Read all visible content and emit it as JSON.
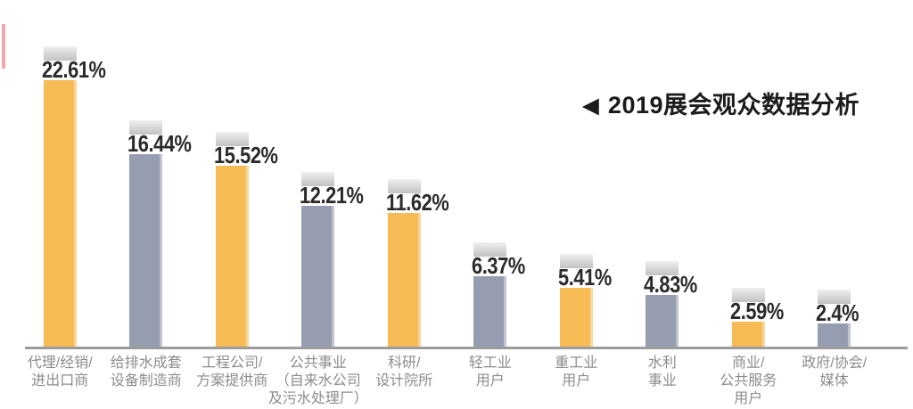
{
  "chart_data": {
    "type": "bar",
    "title": "2019展会观众数据分析",
    "title_marker": "◀",
    "unit": "%",
    "legend": "none",
    "grid": false,
    "ylim": [
      0,
      25
    ],
    "categories": [
      "代理/经销/进出口商",
      "给排水成套设备制造商",
      "工程公司/方案提供商",
      "公共事业（自来水公司及污水处理厂）",
      "科研/设计院所",
      "轻工业用户",
      "重工业用户",
      "水利事业",
      "商业/公共服务用户",
      "政府/协会/媒体"
    ],
    "category_lines": [
      [
        "代理/经销/",
        "进出口商"
      ],
      [
        "给排水成套",
        "设备制造商"
      ],
      [
        "工程公司/",
        "方案提供商"
      ],
      [
        "公共事业",
        "（自来水公司",
        "及污水处理厂）"
      ],
      [
        "科研/",
        "设计院所"
      ],
      [
        "轻工业",
        "用户"
      ],
      [
        "重工业",
        "用户"
      ],
      [
        "水利",
        "事业"
      ],
      [
        "商业/",
        "公共服务",
        "用户"
      ],
      [
        "政府/协会/",
        "媒体"
      ]
    ],
    "values": [
      22.61,
      16.44,
      15.52,
      12.21,
      11.62,
      6.37,
      5.41,
      4.83,
      2.59,
      2.4
    ],
    "value_labels": [
      "22.61%",
      "16.44%",
      "15.52%",
      "12.21%",
      "11.62%",
      "6.37%",
      "5.41%",
      "4.83%",
      "2.59%",
      "2.4%"
    ],
    "bar_palette": {
      "yellow": "#f6bb55",
      "slate": "#979db1"
    },
    "bar_color_sequence": [
      "yellow",
      "slate",
      "yellow",
      "slate",
      "yellow",
      "slate",
      "yellow",
      "slate",
      "yellow",
      "slate"
    ],
    "colors": {
      "cap_top": "#efefef",
      "cap_bottom": "#c2c2c2",
      "axis_line": "#9c9c9c",
      "value_text": "#2a2a2a",
      "category_text": "#8c8c8c",
      "title_text": "#1b1b1b",
      "accent_line": "#f0a8ac",
      "background": "#ffffff"
    }
  }
}
